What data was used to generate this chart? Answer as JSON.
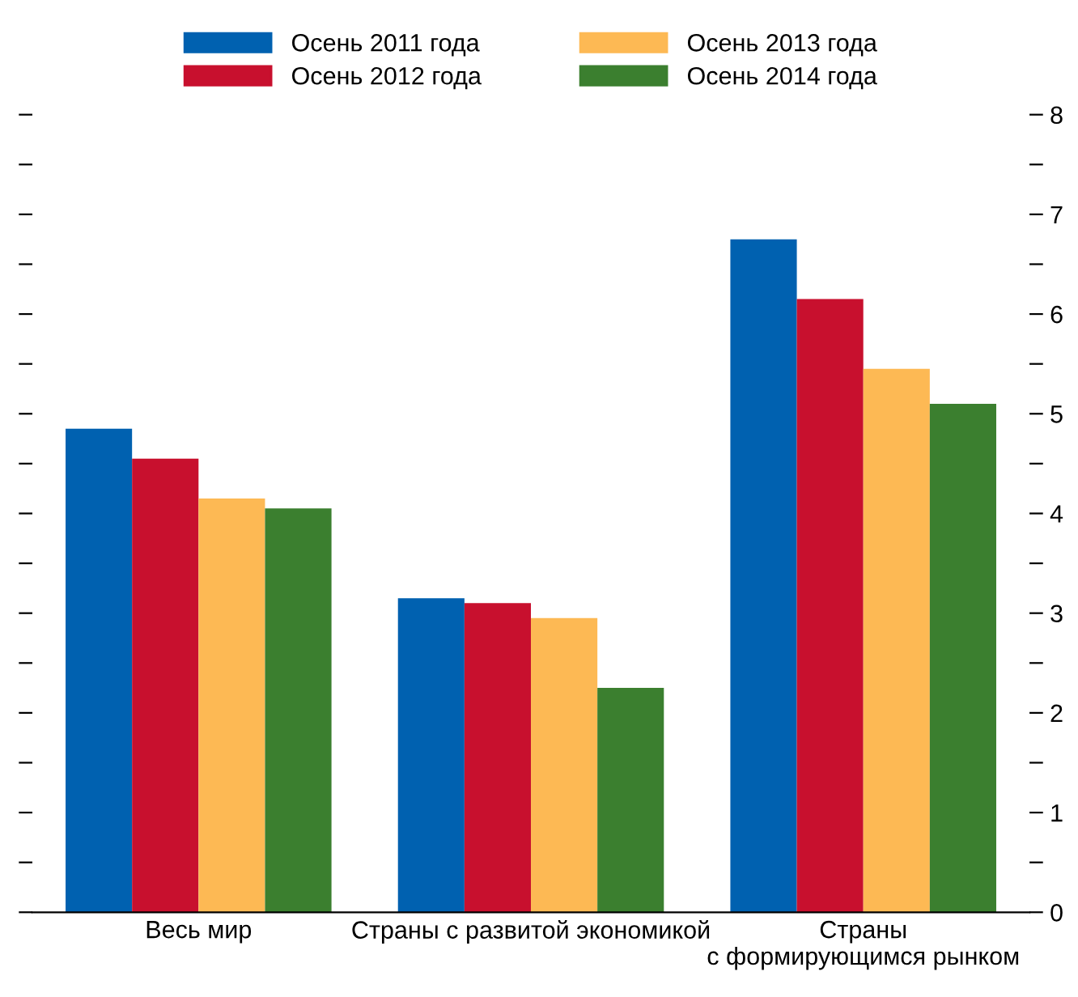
{
  "chart_data": {
    "type": "bar",
    "categories": [
      "Весь мир",
      "Страны с развитой экономикой",
      "Страны\nс формирующимся рынком"
    ],
    "series": [
      {
        "name": "Осень 2011 года",
        "color": "#0061b0",
        "values": [
          4.85,
          3.15,
          6.75
        ]
      },
      {
        "name": "Осень 2012 года",
        "color": "#c8102e",
        "values": [
          4.55,
          3.1,
          6.15
        ]
      },
      {
        "name": "Осень 2013 года",
        "color": "#fdb954",
        "values": [
          4.15,
          2.95,
          5.45
        ]
      },
      {
        "name": "Осень 2014 года",
        "color": "#3b7f2f",
        "values": [
          4.05,
          2.25,
          5.1
        ]
      }
    ],
    "ylim": [
      0,
      8
    ],
    "yticks": [
      0,
      {
        "value": 0.5,
        "label": null
      },
      1,
      {
        "value": 1.5,
        "label": null
      },
      2,
      {
        "value": 2.5,
        "label": null
      },
      3,
      {
        "value": 3.5,
        "label": null
      },
      4,
      {
        "value": 4.5,
        "label": null
      },
      5,
      {
        "value": 5.5,
        "label": null
      },
      6,
      {
        "value": 6.5,
        "label": null
      },
      7,
      {
        "value": 7.5,
        "label": null
      },
      8
    ],
    "grid": false,
    "legend": "top"
  }
}
